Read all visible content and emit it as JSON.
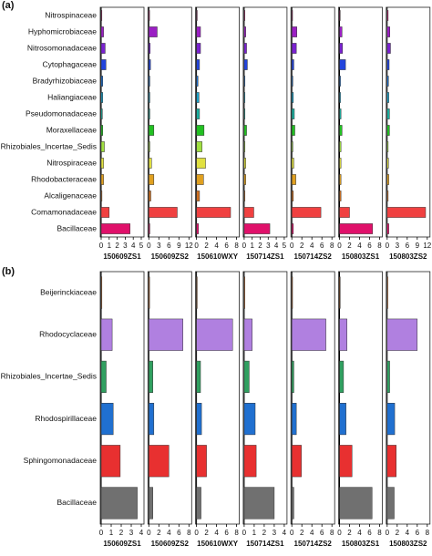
{
  "chart_data": [
    {
      "type": "bar",
      "label": "(a)",
      "categories": [
        "Nitrospinaceae",
        "Hyphomicrobiaceae",
        "Nitrosomonadaceae",
        "Cytophagaceae",
        "Bradyrhizobiaceae",
        "Haliangiaceae",
        "Pseudomonadaceae",
        "Moraxellaceae",
        "Rhizobiales_Incertae_Sedis",
        "Nitrospiraceae",
        "Rhodobacteraceae",
        "Alcaligenaceae",
        "Comamonadaceae",
        "Bacillaceae"
      ],
      "colors": [
        "#c0106a",
        "#9b1fc4",
        "#7a22d0",
        "#2244dd",
        "#1a6fd0",
        "#1aa0c8",
        "#1ab0a0",
        "#22c022",
        "#a0e040",
        "#e0e040",
        "#e0a020",
        "#d07020",
        "#f04040",
        "#e0106a"
      ],
      "series": [
        {
          "name": "150609ZS1",
          "xlim": [
            0,
            5
          ],
          "xticks": [
            0,
            1,
            2,
            3,
            4,
            5
          ],
          "values": [
            0.05,
            0.3,
            0.5,
            0.6,
            0.2,
            0.2,
            0.15,
            0.2,
            0.4,
            0.3,
            0.3,
            0.1,
            1.0,
            3.6
          ]
        },
        {
          "name": "150609ZS2",
          "xlim": [
            0,
            12
          ],
          "xticks": [
            0,
            3,
            6,
            9,
            12
          ],
          "values": [
            0.1,
            2.5,
            0.4,
            0.5,
            0.3,
            0.3,
            0.3,
            1.5,
            0.3,
            0.8,
            1.5,
            0.6,
            8.5,
            0.3
          ]
        },
        {
          "name": "150610WXY",
          "xlim": [
            0,
            8
          ],
          "xticks": [
            0,
            2,
            4,
            6,
            8
          ],
          "values": [
            0.1,
            0.8,
            0.8,
            0.6,
            0.3,
            0.5,
            0.6,
            1.5,
            1.1,
            1.8,
            1.4,
            0.6,
            6.8,
            0.4
          ]
        },
        {
          "name": "150714ZS1",
          "xlim": [
            0,
            5
          ],
          "xticks": [
            0,
            1,
            2,
            3,
            4,
            5
          ],
          "values": [
            0.05,
            0.2,
            0.3,
            0.4,
            0.1,
            0.1,
            0.1,
            0.3,
            0.1,
            0.2,
            0.2,
            0.1,
            1.2,
            3.2
          ]
        },
        {
          "name": "150714ZS2",
          "xlim": [
            0,
            8
          ],
          "xticks": [
            0,
            2,
            4,
            6,
            8
          ],
          "values": [
            0.1,
            1.0,
            0.9,
            0.4,
            0.2,
            0.3,
            0.5,
            0.6,
            0.2,
            0.4,
            0.8,
            0.3,
            5.8,
            0.3
          ]
        },
        {
          "name": "150803ZS1",
          "xlim": [
            0,
            8
          ],
          "xticks": [
            0,
            2,
            4,
            6,
            8
          ],
          "values": [
            0.1,
            0.5,
            0.6,
            1.2,
            0.2,
            0.2,
            0.3,
            0.5,
            0.3,
            0.3,
            0.3,
            0.3,
            2.0,
            6.6
          ]
        },
        {
          "name": "150803ZS2",
          "xlim": [
            0,
            12
          ],
          "xticks": [
            0,
            3,
            6,
            9,
            12
          ],
          "values": [
            0.3,
            0.8,
            1.0,
            0.6,
            0.4,
            0.5,
            0.7,
            0.7,
            0.3,
            0.4,
            0.5,
            0.3,
            11.5,
            0.5
          ]
        }
      ]
    },
    {
      "type": "bar",
      "label": "(b)",
      "categories": [
        "Beijerinckiaceae",
        "Rhodocyclaceae",
        "Rhizobiales_Incertae_Sedis",
        "Rhodospirillaceae",
        "Sphingomonadaceae",
        "Bacillaceae"
      ],
      "colors": [
        "#e07020",
        "#b080e0",
        "#30a060",
        "#2070d0",
        "#e83030",
        "#707070"
      ],
      "series": [
        {
          "name": "150609ZS1",
          "xlim": [
            0,
            4
          ],
          "xticks": [
            0,
            1,
            2,
            3,
            4
          ],
          "values": [
            0,
            1.1,
            0.5,
            1.2,
            1.9,
            3.6
          ]
        },
        {
          "name": "150609ZS2",
          "xlim": [
            0,
            8
          ],
          "xticks": [
            0,
            2,
            4,
            6,
            8
          ],
          "values": [
            0.15,
            6.8,
            0.8,
            1.0,
            4.0,
            0.8
          ]
        },
        {
          "name": "150610WXY",
          "xlim": [
            0,
            8
          ],
          "xticks": [
            0,
            2,
            4,
            6,
            8
          ],
          "values": [
            0.1,
            7.2,
            0.8,
            1.0,
            2.0,
            0.9
          ]
        },
        {
          "name": "150714ZS1",
          "xlim": [
            0,
            4
          ],
          "xticks": [
            0,
            1,
            2,
            3,
            4
          ],
          "values": [
            0,
            0.8,
            0.5,
            1.1,
            1.2,
            3.0
          ]
        },
        {
          "name": "150714ZS2",
          "xlim": [
            0,
            8
          ],
          "xticks": [
            0,
            2,
            4,
            6,
            8
          ],
          "values": [
            0.05,
            6.8,
            0.4,
            0.9,
            1.9,
            0.4
          ]
        },
        {
          "name": "150803ZS1",
          "xlim": [
            0,
            8
          ],
          "xticks": [
            0,
            2,
            4,
            6,
            8
          ],
          "values": [
            0.05,
            1.5,
            0.8,
            1.3,
            2.5,
            6.5
          ]
        },
        {
          "name": "150803ZS2",
          "xlim": [
            0,
            8
          ],
          "xticks": [
            0,
            2,
            4,
            6,
            8
          ],
          "values": [
            0.1,
            6.0,
            0.5,
            1.5,
            1.8,
            1.4
          ]
        }
      ]
    }
  ]
}
